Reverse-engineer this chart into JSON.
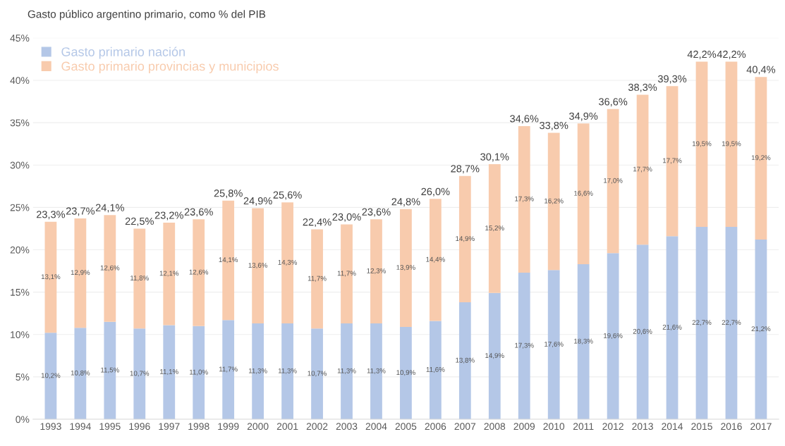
{
  "chart_data": {
    "type": "bar",
    "title": "Gasto público argentino primario, como % del PIB",
    "stacked": true,
    "categories": [
      "1993",
      "1994",
      "1995",
      "1996",
      "1997",
      "1998",
      "1999",
      "2000",
      "2001",
      "2002",
      "2003",
      "2004",
      "2005",
      "2006",
      "2007",
      "2008",
      "2009",
      "2010",
      "2011",
      "2012",
      "2013",
      "2014",
      "2015",
      "2016",
      "2017"
    ],
    "series": [
      {
        "name": "Gasto primario nación",
        "color": "#b4c7e7",
        "values": [
          10.2,
          10.8,
          11.5,
          10.7,
          11.1,
          11.0,
          11.7,
          11.3,
          11.3,
          10.7,
          11.3,
          11.3,
          10.9,
          11.6,
          13.8,
          14.9,
          17.3,
          17.6,
          18.3,
          19.6,
          20.6,
          21.6,
          22.7,
          22.7,
          21.2
        ],
        "value_labels": [
          "10,2%",
          "10,8%",
          "11,5%",
          "10,7%",
          "11,1%",
          "11,0%",
          "11,7%",
          "11,3%",
          "11,3%",
          "10,7%",
          "11,3%",
          "11,3%",
          "10,9%",
          "11,6%",
          "13,8%",
          "14,9%",
          "17,3%",
          "17,6%",
          "18,3%",
          "19,6%",
          "20,6%",
          "21,6%",
          "22,7%",
          "22,7%",
          "21,2%"
        ]
      },
      {
        "name": "Gasto primario provincias y municipios",
        "color": "#f8cbad",
        "values": [
          13.1,
          12.9,
          12.6,
          11.8,
          12.1,
          12.6,
          14.1,
          13.6,
          14.3,
          11.7,
          11.7,
          12.3,
          13.9,
          14.4,
          14.9,
          15.2,
          17.3,
          16.2,
          16.6,
          17.0,
          17.7,
          17.7,
          19.5,
          19.5,
          19.2
        ],
        "value_labels": [
          "13,1%",
          "12,9%",
          "12,6%",
          "11,8%",
          "12,1%",
          "12,6%",
          "14,1%",
          "13,6%",
          "14,3%",
          "11,7%",
          "11,7%",
          "12,3%",
          "13,9%",
          "14,4%",
          "14,9%",
          "15,2%",
          "17,3%",
          "16,2%",
          "16,6%",
          "17,0%",
          "17,7%",
          "17,7%",
          "19,5%",
          "19,5%",
          "19,2%"
        ]
      }
    ],
    "totals": [
      "23,3%",
      "23,7%",
      "24,1%",
      "22,5%",
      "23,2%",
      "23,6%",
      "25,8%",
      "24,9%",
      "25,6%",
      "22,4%",
      "23,0%",
      "23,6%",
      "24,8%",
      "26,0%",
      "28,7%",
      "30,1%",
      "34,6%",
      "33,8%",
      "34,9%",
      "36,6%",
      "38,3%",
      "39,3%",
      "42,2%",
      "42,2%",
      "40,4%"
    ],
    "ylim": [
      0,
      45
    ],
    "yticks": [
      {
        "value": 0,
        "label": "0%"
      },
      {
        "value": 5,
        "label": "5%"
      },
      {
        "value": 10,
        "label": "10%"
      },
      {
        "value": 15,
        "label": "15%"
      },
      {
        "value": 20,
        "label": "20%"
      },
      {
        "value": 25,
        "label": "25%"
      },
      {
        "value": 30,
        "label": "30%"
      },
      {
        "value": 35,
        "label": "35%"
      },
      {
        "value": 40,
        "label": "40%"
      },
      {
        "value": 45,
        "label": "45%"
      }
    ],
    "grid": "y",
    "legend": "top left"
  }
}
